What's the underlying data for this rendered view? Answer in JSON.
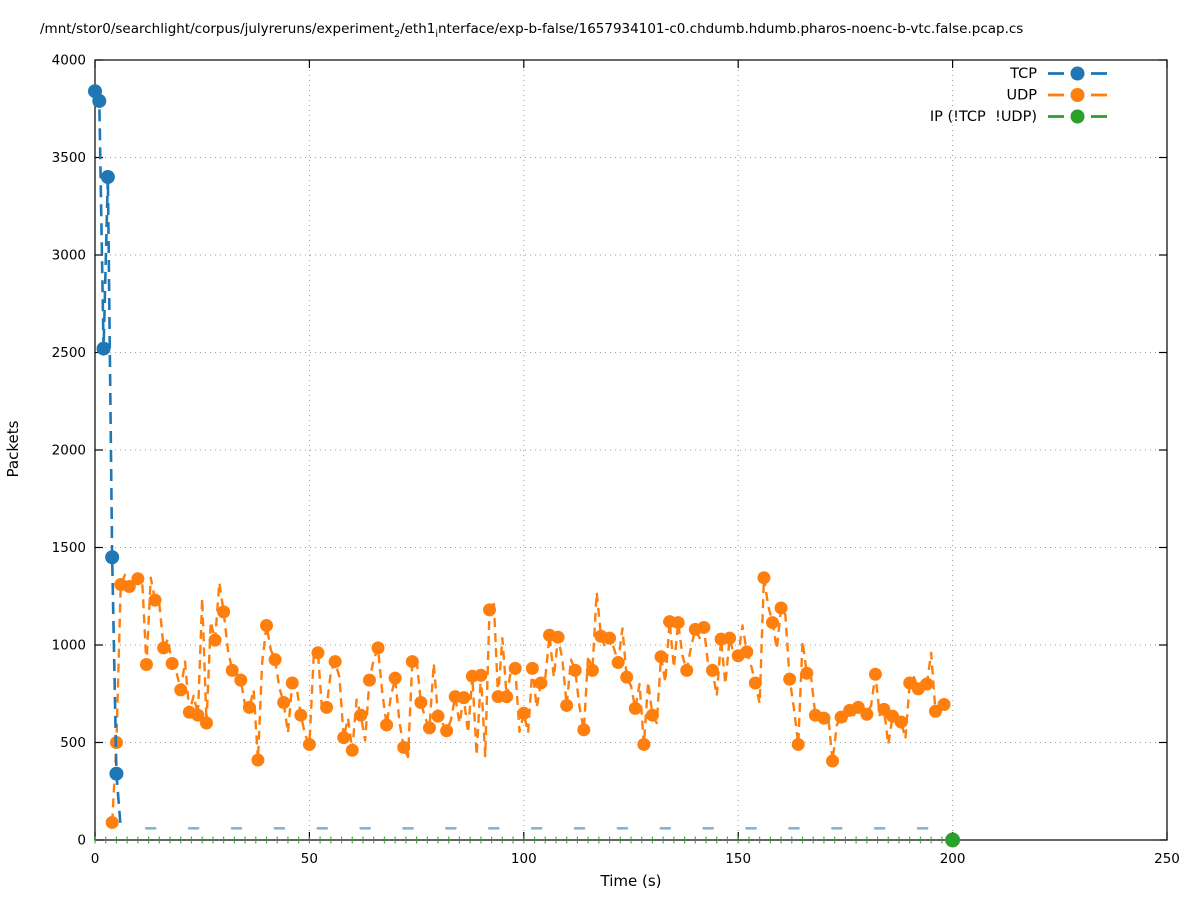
{
  "title": {
    "segments": [
      {
        "text": "/mnt/stor0/searchlight/corpus/julyreruns/experiment"
      },
      {
        "text": "2",
        "sub": true
      },
      {
        "text": "/eth1"
      },
      {
        "text": "i",
        "sub": true
      },
      {
        "text": "nterface/exp-b-false/1657934101-c0.chdumb.hdumb.pharos-noenc-b-vtc.false.pcap.cs"
      }
    ]
  },
  "legend": {
    "entries": [
      {
        "label": "TCP",
        "color": "#1f77b4"
      },
      {
        "label": "UDP",
        "color": "#ff7f0e"
      },
      {
        "label": "IP (!TCP  !UDP)",
        "color": "#2ca02c"
      }
    ]
  },
  "chart_data": {
    "type": "line",
    "title": "/mnt/stor0/searchlight/corpus/julyreruns/experiment_2/eth1_interface/exp-b-false/1657934101-c0.chdumb.hdumb.pharos-noenc-b-vtc.false.pcap.cs",
    "xlabel": "Time (s)",
    "ylabel": "Packets",
    "xlim": [
      0,
      250
    ],
    "ylim": [
      0,
      4000
    ],
    "x_ticks": [
      0,
      50,
      100,
      150,
      200,
      250
    ],
    "y_ticks": [
      0,
      500,
      1000,
      1500,
      2000,
      2500,
      3000,
      3500,
      4000
    ],
    "grid": true,
    "legend_position": "top-right-inside",
    "colors": {
      "tcp": "#1f77b4",
      "udp": "#ff7f0e",
      "ip": "#2ca02c",
      "grid": "#9e9e9e"
    },
    "series": [
      {
        "name": "TCP",
        "color": "#1f77b4",
        "points": [
          [
            0,
            3840
          ],
          [
            1,
            3790
          ],
          [
            2,
            2520
          ],
          [
            3,
            3400
          ],
          [
            4,
            1450
          ],
          [
            5,
            340
          ],
          [
            6,
            60
          ]
        ],
        "low_dashes": {
          "value": 60,
          "t_start": 13,
          "t_end": 193,
          "interval": 10
        }
      },
      {
        "name": "UDP",
        "color": "#ff7f0e",
        "points": [
          [
            4,
            90
          ],
          [
            5,
            500
          ],
          [
            6,
            1310
          ],
          [
            7,
            1360
          ],
          [
            8,
            1300
          ],
          [
            9,
            1290
          ],
          [
            10,
            1340
          ],
          [
            11,
            1330
          ],
          [
            12,
            900
          ],
          [
            13,
            1345
          ],
          [
            14,
            1230
          ],
          [
            15,
            1210
          ],
          [
            16,
            985
          ],
          [
            17,
            1030
          ],
          [
            18,
            905
          ],
          [
            19,
            860
          ],
          [
            20,
            770
          ],
          [
            21,
            915
          ],
          [
            22,
            655
          ],
          [
            23,
            740
          ],
          [
            24,
            640
          ],
          [
            25,
            1240
          ],
          [
            26,
            600
          ],
          [
            27,
            1120
          ],
          [
            28,
            1025
          ],
          [
            29,
            1320
          ],
          [
            30,
            1170
          ],
          [
            31,
            975
          ],
          [
            32,
            870
          ],
          [
            33,
            855
          ],
          [
            34,
            820
          ],
          [
            35,
            690
          ],
          [
            36,
            680
          ],
          [
            37,
            770
          ],
          [
            38,
            410
          ],
          [
            39,
            915
          ],
          [
            40,
            1100
          ],
          [
            41,
            975
          ],
          [
            42,
            925
          ],
          [
            43,
            780
          ],
          [
            44,
            705
          ],
          [
            45,
            550
          ],
          [
            46,
            805
          ],
          [
            47,
            785
          ],
          [
            48,
            640
          ],
          [
            49,
            540
          ],
          [
            50,
            490
          ],
          [
            51,
            940
          ],
          [
            52,
            960
          ],
          [
            53,
            650
          ],
          [
            54,
            680
          ],
          [
            55,
            860
          ],
          [
            56,
            915
          ],
          [
            57,
            835
          ],
          [
            58,
            525
          ],
          [
            59,
            625
          ],
          [
            60,
            460
          ],
          [
            61,
            720
          ],
          [
            62,
            640
          ],
          [
            63,
            510
          ],
          [
            64,
            820
          ],
          [
            65,
            925
          ],
          [
            66,
            985
          ],
          [
            67,
            755
          ],
          [
            68,
            590
          ],
          [
            69,
            735
          ],
          [
            70,
            830
          ],
          [
            71,
            605
          ],
          [
            72,
            475
          ],
          [
            73,
            425
          ],
          [
            74,
            915
          ],
          [
            75,
            925
          ],
          [
            76,
            705
          ],
          [
            77,
            625
          ],
          [
            78,
            575
          ],
          [
            79,
            905
          ],
          [
            80,
            635
          ],
          [
            81,
            600
          ],
          [
            82,
            560
          ],
          [
            83,
            615
          ],
          [
            84,
            735
          ],
          [
            85,
            600
          ],
          [
            86,
            730
          ],
          [
            87,
            550
          ],
          [
            88,
            840
          ],
          [
            89,
            435
          ],
          [
            90,
            845
          ],
          [
            91,
            430
          ],
          [
            92,
            1180
          ],
          [
            93,
            1220
          ],
          [
            94,
            735
          ],
          [
            95,
            1035
          ],
          [
            96,
            735
          ],
          [
            97,
            870
          ],
          [
            98,
            880
          ],
          [
            99,
            555
          ],
          [
            100,
            650
          ],
          [
            101,
            550
          ],
          [
            102,
            880
          ],
          [
            103,
            680
          ],
          [
            104,
            805
          ],
          [
            105,
            830
          ],
          [
            106,
            1050
          ],
          [
            107,
            835
          ],
          [
            108,
            1040
          ],
          [
            109,
            925
          ],
          [
            110,
            690
          ],
          [
            111,
            925
          ],
          [
            112,
            870
          ],
          [
            113,
            680
          ],
          [
            114,
            565
          ],
          [
            115,
            945
          ],
          [
            116,
            870
          ],
          [
            117,
            1270
          ],
          [
            118,
            1045
          ],
          [
            119,
            985
          ],
          [
            120,
            1035
          ],
          [
            121,
            985
          ],
          [
            122,
            910
          ],
          [
            123,
            1085
          ],
          [
            124,
            835
          ],
          [
            125,
            790
          ],
          [
            126,
            675
          ],
          [
            127,
            800
          ],
          [
            128,
            490
          ],
          [
            129,
            810
          ],
          [
            130,
            640
          ],
          [
            131,
            600
          ],
          [
            132,
            940
          ],
          [
            133,
            810
          ],
          [
            134,
            1120
          ],
          [
            135,
            885
          ],
          [
            136,
            1115
          ],
          [
            137,
            945
          ],
          [
            138,
            870
          ],
          [
            139,
            990
          ],
          [
            140,
            1080
          ],
          [
            141,
            1035
          ],
          [
            142,
            1090
          ],
          [
            143,
            895
          ],
          [
            144,
            870
          ],
          [
            145,
            740
          ],
          [
            146,
            1030
          ],
          [
            147,
            800
          ],
          [
            148,
            1035
          ],
          [
            149,
            950
          ],
          [
            150,
            945
          ],
          [
            151,
            1100
          ],
          [
            152,
            965
          ],
          [
            153,
            895
          ],
          [
            154,
            805
          ],
          [
            155,
            700
          ],
          [
            156,
            1345
          ],
          [
            157,
            1200
          ],
          [
            158,
            1115
          ],
          [
            159,
            980
          ],
          [
            160,
            1190
          ],
          [
            161,
            1155
          ],
          [
            162,
            825
          ],
          [
            163,
            675
          ],
          [
            164,
            490
          ],
          [
            165,
            1020
          ],
          [
            166,
            855
          ],
          [
            167,
            835
          ],
          [
            168,
            640
          ],
          [
            169,
            635
          ],
          [
            170,
            625
          ],
          [
            171,
            630
          ],
          [
            172,
            405
          ],
          [
            173,
            590
          ],
          [
            174,
            630
          ],
          [
            175,
            610
          ],
          [
            176,
            665
          ],
          [
            177,
            640
          ],
          [
            178,
            680
          ],
          [
            179,
            660
          ],
          [
            180,
            645
          ],
          [
            181,
            690
          ],
          [
            182,
            850
          ],
          [
            183,
            640
          ],
          [
            184,
            670
          ],
          [
            185,
            490
          ],
          [
            186,
            635
          ],
          [
            187,
            590
          ],
          [
            188,
            605
          ],
          [
            189,
            520
          ],
          [
            190,
            805
          ],
          [
            191,
            835
          ],
          [
            192,
            775
          ],
          [
            193,
            820
          ],
          [
            194,
            800
          ],
          [
            195,
            960
          ],
          [
            196,
            660
          ],
          [
            197,
            690
          ],
          [
            198,
            695
          ],
          [
            199,
            700
          ]
        ]
      },
      {
        "name": "IP (!TCP !UDP)",
        "color": "#2ca02c",
        "value": 0,
        "tick_marks": {
          "t_start": 0,
          "t_end": 200,
          "interval": 2.5
        },
        "end_dot": [
          200,
          0
        ]
      }
    ]
  }
}
